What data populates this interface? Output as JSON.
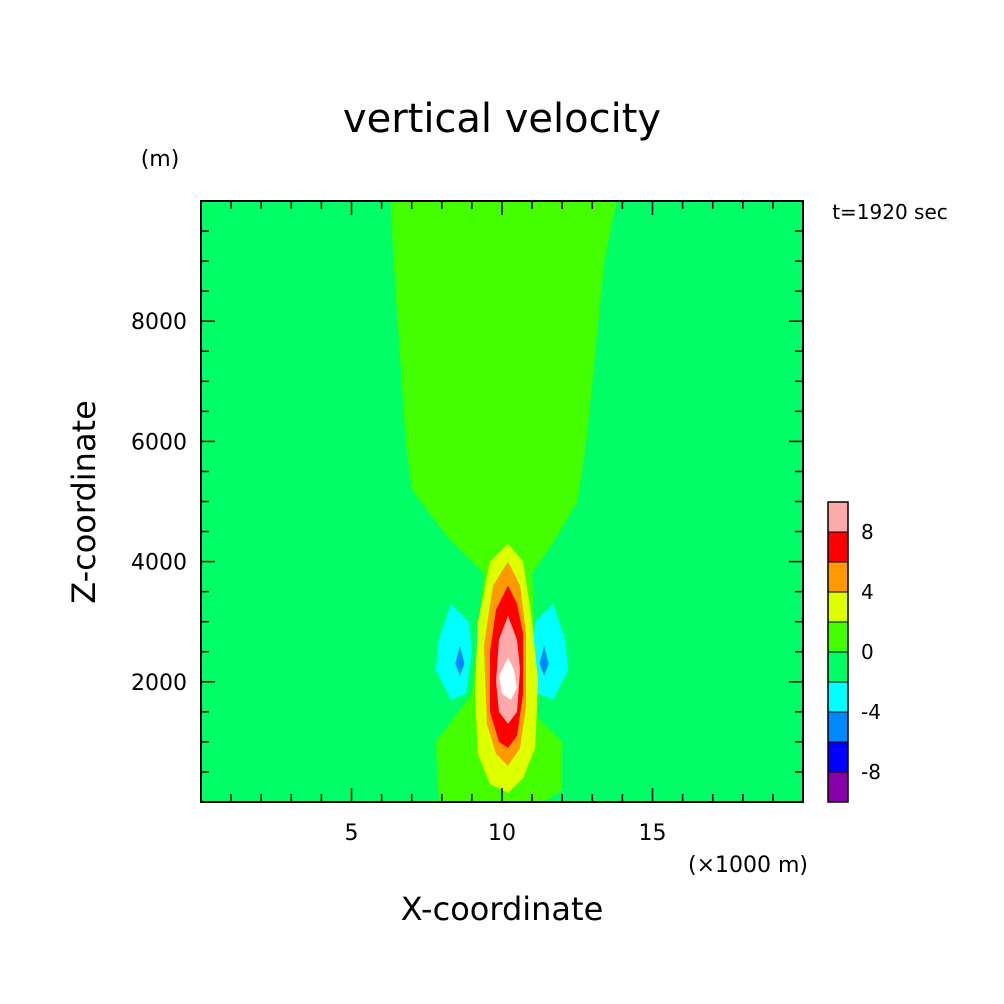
{
  "chart_data": {
    "type": "heatmap",
    "title": "vertical velocity",
    "y_unit_label": "(m)",
    "xlabel": "X-coordinate",
    "ylabel": "Z-coordinate",
    "x_unit_label": "(×1000 m)",
    "time_label": "t=1920 sec",
    "xlim": [
      0,
      20
    ],
    "ylim": [
      0,
      10000
    ],
    "x_ticks": [
      5,
      10,
      15
    ],
    "y_ticks": [
      2000,
      4000,
      6000,
      8000
    ],
    "colorbar": {
      "tick_labels": [
        "8",
        "4",
        "0",
        "-4",
        "-8"
      ],
      "tick_values": [
        8,
        4,
        0,
        -4,
        -8
      ],
      "levels": [
        -10,
        -8,
        -6,
        -4,
        -2,
        0,
        2,
        4,
        6,
        8,
        10
      ],
      "colors": [
        "#8800aa",
        "#0000ff",
        "#0088ff",
        "#00ffff",
        "#00ff66",
        "#44ff00",
        "#ddff00",
        "#ff9900",
        "#ff0000",
        "#ffaaaa"
      ]
    },
    "background_color": "#00ff66"
  }
}
